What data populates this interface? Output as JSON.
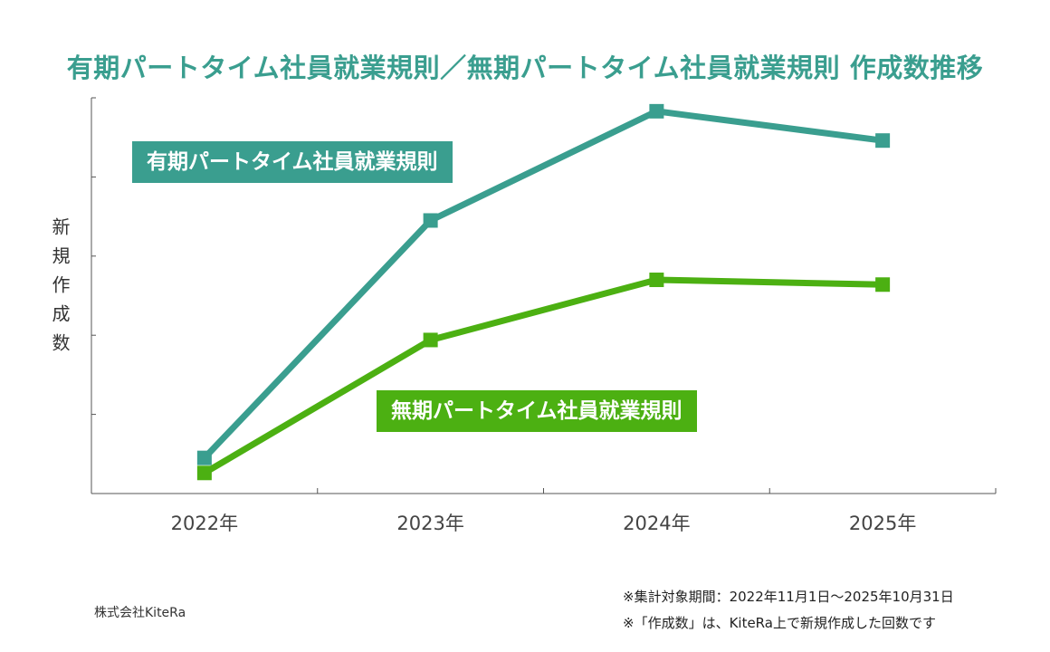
{
  "title": "有期パートタイム社員就業規則／無期パートタイム社員就業規則 作成数推移",
  "chart_data": {
    "type": "line",
    "title": "有期パートタイム社員就業規則／無期パートタイム社員就業規則 作成数推移",
    "xlabel": "",
    "ylabel": "新規作成数",
    "categories": [
      "2022年",
      "2023年",
      "2024年",
      "2025年"
    ],
    "ylim": [
      0,
      5
    ],
    "y_ticks_count": 5,
    "y_tick_labels_shown": false,
    "grid": false,
    "series": [
      {
        "name": "有期パートタイム社員就業規則",
        "color": "#3a9e8f",
        "values": [
          0.45,
          3.45,
          4.83,
          4.46
        ]
      },
      {
        "name": "無期パートタイム社員就業規則",
        "color": "#4cb012",
        "values": [
          0.26,
          1.94,
          2.7,
          2.64
        ]
      }
    ]
  },
  "footer": {
    "company": "株式会社KiteRa",
    "note1": "※集計対象期間：2022年11月1日〜2025年10月31日",
    "note2": "※「作成数」は、KiteRa上で新規作成した回数です"
  }
}
